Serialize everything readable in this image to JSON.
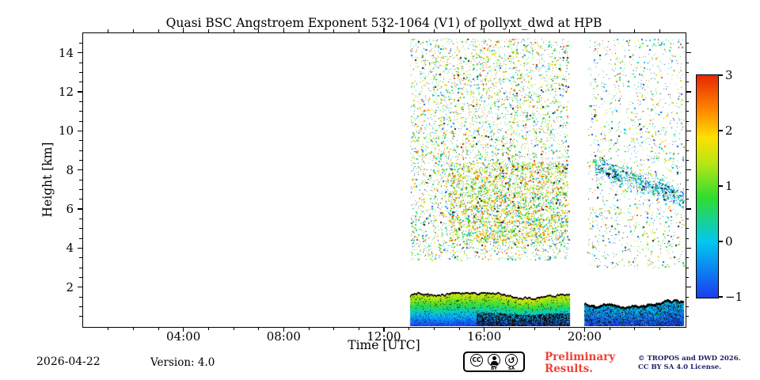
{
  "footer": {
    "date": "2026-04-22",
    "version": "Version: 4.0",
    "preliminary_line1": "Preliminary",
    "preliminary_line2": "Results.",
    "copyright_line1": "© TROPOS and DWD 2026.",
    "copyright_line2": "CC BY SA 4.0 License.",
    "cc": {
      "cc": "CC",
      "by": "BY",
      "sa": "SA",
      "sa_glyph": "↺"
    }
  },
  "chart_data": {
    "type": "heatmap",
    "title": "Quasi BSC Angstroem Exponent 532-1064 (V1) of pollyxt_dwd at HPB",
    "xlabel": "Time [UTC]",
    "ylabel": "Height [km]",
    "xlim_hours": [
      0,
      24
    ],
    "ylim_km": [
      0,
      15
    ],
    "x_major_hours": [
      4,
      8,
      12,
      16,
      20
    ],
    "x_major_ticks": [
      "04:00",
      "08:00",
      "12:00",
      "16:00",
      "20:00"
    ],
    "x_minor_step_hours": 1,
    "y_major_ticks": [
      2,
      4,
      6,
      8,
      10,
      12,
      14
    ],
    "y_minor_step_km": 0.5,
    "grid": false,
    "background": "#ffffff",
    "colorbar": {
      "min": -1,
      "max": 3,
      "ticks": [
        -1,
        0,
        1,
        2,
        3
      ],
      "tick_labels": [
        "−1",
        "0",
        "1",
        "2",
        "3"
      ],
      "colormap": "jet",
      "stops": [
        [
          0.0,
          "#1a3cf0"
        ],
        [
          0.25,
          "#00c8f0"
        ],
        [
          0.45,
          "#30dc30"
        ],
        [
          0.6,
          "#b4e614"
        ],
        [
          0.72,
          "#ffe000"
        ],
        [
          0.85,
          "#ff8200"
        ],
        [
          1.0,
          "#e62800"
        ]
      ]
    },
    "seed": 7,
    "gaps_hours": [
      [
        0,
        13.05
      ],
      [
        19.4,
        20.0
      ]
    ],
    "regions": [
      {
        "kind": "speckle",
        "t0": 13.05,
        "t1": 19.35,
        "h0": 3.4,
        "h1": 14.75,
        "count": 5200,
        "palette": "mixed_warm"
      },
      {
        "kind": "speckle",
        "t0": 14.6,
        "t1": 19.3,
        "h0": 4.3,
        "h1": 8.4,
        "count": 2400,
        "palette": "warm_dense"
      },
      {
        "kind": "speckle",
        "t0": 20.1,
        "t1": 23.95,
        "h0": 3.0,
        "h1": 14.75,
        "count": 1500,
        "palette": "mixed_sparse"
      },
      {
        "kind": "streak",
        "t0": 20.4,
        "t1": 23.95,
        "hA": 8.2,
        "hB": 6.6,
        "count": 800,
        "palette": "teal"
      },
      {
        "kind": "band",
        "t0": 13.05,
        "t1": 19.4,
        "h_top_mean": 1.5,
        "h_top_var": 0.18,
        "style": "rainbow"
      },
      {
        "kind": "band",
        "t0": 20.0,
        "t1": 23.95,
        "h_top_mean": 1.1,
        "h_top_var": 0.2,
        "style": "dark"
      }
    ]
  }
}
